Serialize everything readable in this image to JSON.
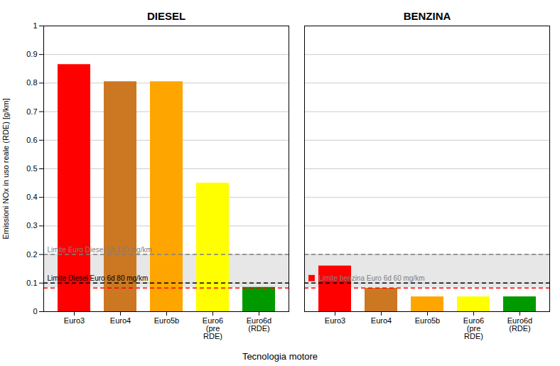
{
  "chart_data": {
    "type": "bar",
    "ylabel": "Emissioni NOx in uso reale (RDE) [g/km]",
    "xlabel": "Tecnologia motore",
    "series": [
      {
        "name": "DIESEL",
        "categories": [
          "Euro3",
          "Euro4",
          "Euro5b",
          "Euro6\n(pre\nRDE)",
          "Euro6d\n(RDE)"
        ],
        "values": [
          0.865,
          0.805,
          0.805,
          0.45,
          0.085
        ],
        "colors": [
          "#FF0000",
          "#CC7722",
          "#FFA500",
          "#FFFF00",
          "#009900"
        ]
      },
      {
        "name": "BENZINA",
        "categories": [
          "Euro3",
          "Euro4",
          "Euro5b",
          "Euro6\n(pre\nRDE)",
          "Euro6d\n(RDE)"
        ],
        "values": [
          0.16,
          0.082,
          0.052,
          0.052,
          0.052
        ],
        "colors": [
          "#FF0000",
          "#CC7722",
          "#FFA500",
          "#FFFF00",
          "#009900"
        ]
      }
    ],
    "ylim": [
      0,
      1.0
    ],
    "yticks": [
      0,
      0.1,
      0.2,
      0.3,
      0.4,
      0.5,
      0.6,
      0.7,
      0.8,
      0.9,
      1
    ],
    "grid": true,
    "band": {
      "y1": 0.083,
      "y2": 0.2,
      "color": "lightgray"
    },
    "reference_lines": [
      {
        "y": 0.2,
        "color": "gray",
        "line_style": "dashed"
      },
      {
        "y": 0.1,
        "color": "black",
        "line_style": "dashed"
      },
      {
        "y": 0.083,
        "color": "red",
        "line_style": "dashed"
      }
    ],
    "annotations": [
      {
        "text": "Limite Euro Diesel 5b 180 mg/km",
        "y": 0.2,
        "section": "DIESEL",
        "color": "gray"
      },
      {
        "text": "Limite Diesel Euro 6d 80 mg/km",
        "y": 0.1,
        "section": "DIESEL",
        "color": "black"
      },
      {
        "y": 0.1,
        "section": "BENZINA",
        "color": "red",
        "marker": "square"
      },
      {
        "text": "Limite benzina Euro 6d 60 mg/km",
        "y": 0.1,
        "section": "BENZINA",
        "color": "gray"
      }
    ]
  }
}
